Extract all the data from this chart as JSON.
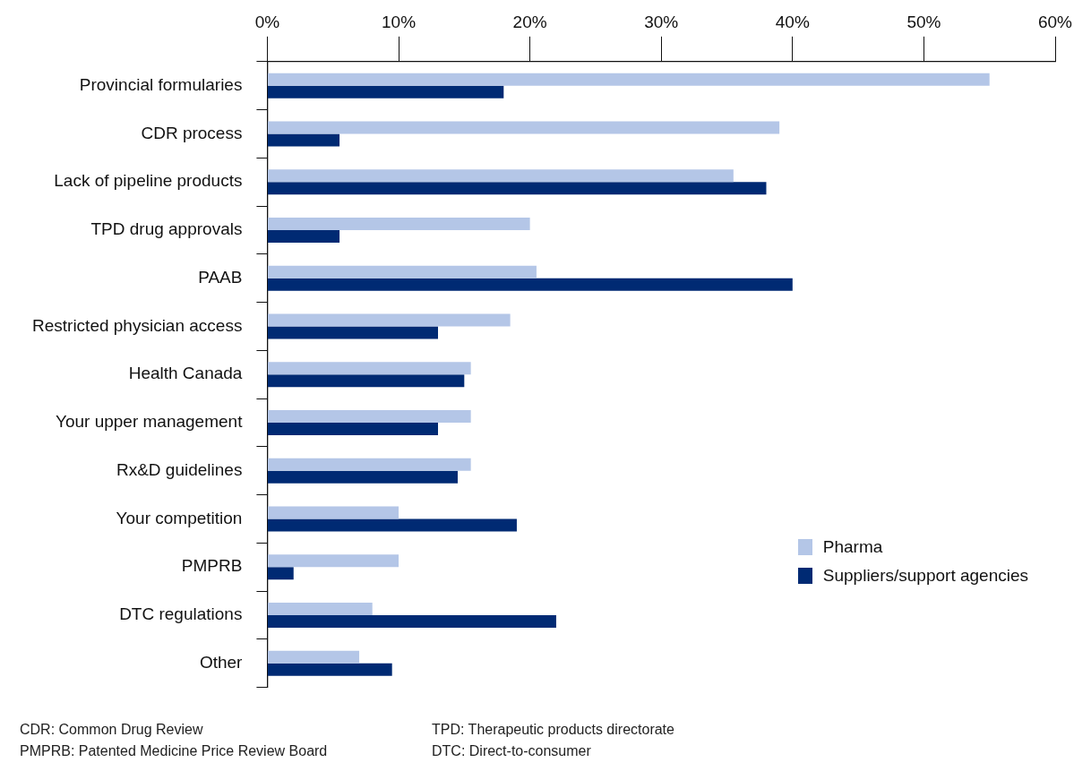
{
  "chart_data": {
    "type": "bar",
    "orientation": "horizontal",
    "categories": [
      "Provincial formularies",
      "CDR process",
      "Lack of pipeline products",
      "TPD drug approvals",
      "PAAB",
      "Restricted physician access",
      "Health Canada",
      "Your upper management",
      "Rx&D guidelines",
      "Your competition",
      "PMPRB",
      "DTC regulations",
      "Other"
    ],
    "series": [
      {
        "name": "Pharma",
        "color": "#b4c6e7",
        "values": [
          55,
          39,
          35.5,
          20,
          20.5,
          18.5,
          15.5,
          15.5,
          15.5,
          10,
          10,
          8,
          7
        ]
      },
      {
        "name": "Suppliers/support agencies",
        "color": "#002a73",
        "values": [
          18,
          5.5,
          38,
          5.5,
          40,
          13,
          15,
          13,
          14.5,
          19,
          2,
          22,
          9.5
        ]
      }
    ],
    "xlim": [
      0,
      60
    ],
    "xticks": [
      {
        "value": 0,
        "label": "0%"
      },
      {
        "value": 10,
        "label": "10%"
      },
      {
        "value": 20,
        "label": "20%"
      },
      {
        "value": 30,
        "label": "30%"
      },
      {
        "value": 40,
        "label": "40%"
      },
      {
        "value": 50,
        "label": "50%"
      },
      {
        "value": 60,
        "label": "60%"
      }
    ],
    "grid": false,
    "legend": "bottom right",
    "annotations": [
      "CDR: Common Drug Review",
      "PMPRB: Patented Medicine Price Review Board",
      "TPD: Therapeutic products directorate",
      "DTC: Direct-to-consumer"
    ]
  }
}
